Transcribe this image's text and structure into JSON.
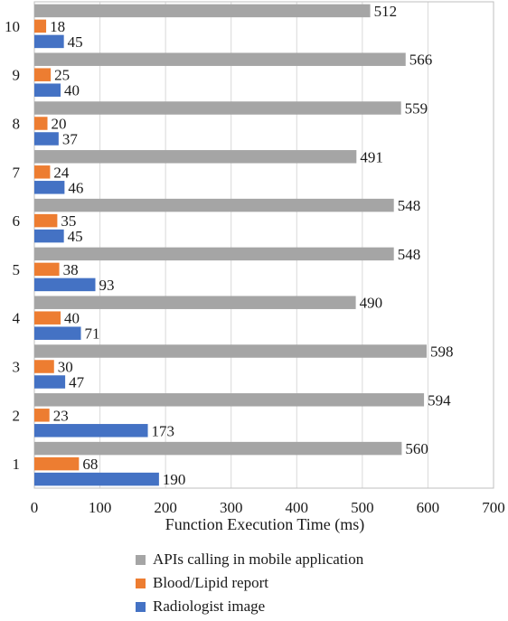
{
  "chart_data": {
    "type": "bar",
    "orientation": "horizontal",
    "categories": [
      "1",
      "2",
      "3",
      "4",
      "5",
      "6",
      "7",
      "8",
      "9",
      "10"
    ],
    "series": [
      {
        "name": "APIs calling in mobile application",
        "color": "#a5a5a5",
        "values": [
          560,
          594,
          598,
          490,
          548,
          548,
          491,
          559,
          566,
          512
        ]
      },
      {
        "name": "Blood/Lipid report",
        "color": "#ed7d31",
        "values": [
          68,
          23,
          30,
          40,
          38,
          35,
          24,
          20,
          25,
          18
        ]
      },
      {
        "name": "Radiologist image",
        "color": "#4472c4",
        "values": [
          190,
          173,
          47,
          71,
          93,
          45,
          46,
          37,
          40,
          45
        ]
      }
    ],
    "xlabel": "Function Execution Time (ms)",
    "ylabel": "",
    "xlim": [
      0,
      700
    ],
    "xticks": [
      0,
      100,
      200,
      300,
      400,
      500,
      600,
      700
    ],
    "data_labels": true,
    "grid": "vertical",
    "legend_position": "bottom"
  }
}
